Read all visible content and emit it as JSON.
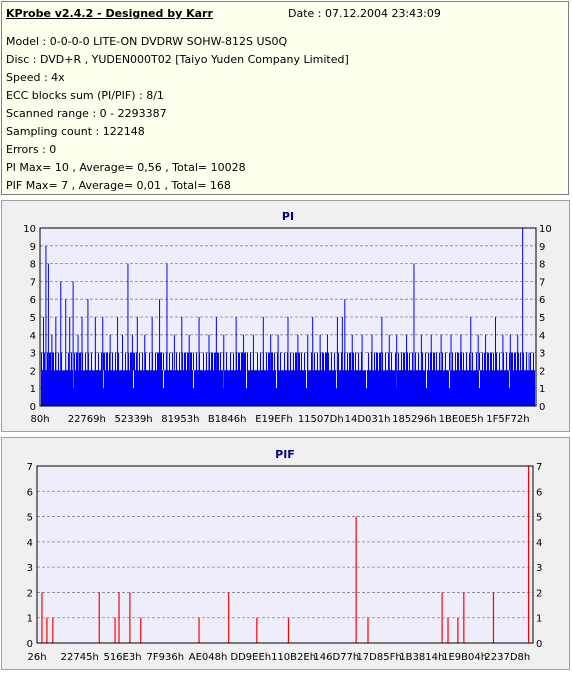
{
  "header": {
    "title": "KProbe v2.4.2 - Designed by Karr",
    "date": "Date : 07.12.2004 23:43:09",
    "lines": [
      "Model : 0-0-0-0 LITE-ON DVDRW SOHW-812S  US0Q",
      "Disc : DVD+R , YUDEN000T02 [Taiyo Yuden Company Limited]",
      "Speed : 4x",
      "ECC blocks sum (PI/PIF) : 8/1",
      "Scanned range : 0 - 2293387",
      "Sampling count : 122148",
      "Errors : 0",
      "PI Max= 10 , Average= 0,56 , Total= 10028",
      "PIF Max= 7 , Average= 0,01 , Total= 168"
    ]
  },
  "colors": {
    "pi": "#0000ff",
    "pif": "#ff0000",
    "plot_bg": "#eeeefa",
    "grid": "#8080a0",
    "panel_bg": "#f0f0f0",
    "title": "#000080"
  },
  "chart_data": [
    {
      "type": "bar",
      "title": "PI",
      "ylim": [
        0,
        10
      ],
      "yticks": [
        0,
        1,
        2,
        3,
        4,
        5,
        6,
        7,
        8,
        9,
        10
      ],
      "xticks": [
        "80h",
        "22769h",
        "52339h",
        "81953h",
        "B1846h",
        "E19EFh",
        "11507Dh",
        "14D031h",
        "185296h",
        "1BE0E5h",
        "1F5F72h"
      ],
      "grid": true,
      "base_level": 2,
      "frequent_level": 3,
      "spikes": [
        [
          0.005,
          5
        ],
        [
          0.01,
          9
        ],
        [
          0.015,
          8
        ],
        [
          0.022,
          4
        ],
        [
          0.03,
          5
        ],
        [
          0.04,
          7
        ],
        [
          0.05,
          6
        ],
        [
          0.058,
          5
        ],
        [
          0.065,
          7
        ],
        [
          0.075,
          4
        ],
        [
          0.083,
          5
        ],
        [
          0.095,
          6
        ],
        [
          0.11,
          5
        ],
        [
          0.125,
          5
        ],
        [
          0.14,
          4
        ],
        [
          0.155,
          5
        ],
        [
          0.165,
          4
        ],
        [
          0.176,
          8
        ],
        [
          0.185,
          4
        ],
        [
          0.195,
          5
        ],
        [
          0.21,
          4
        ],
        [
          0.225,
          5
        ],
        [
          0.24,
          6
        ],
        [
          0.255,
          8
        ],
        [
          0.27,
          4
        ],
        [
          0.285,
          5
        ],
        [
          0.3,
          4
        ],
        [
          0.32,
          5
        ],
        [
          0.34,
          4
        ],
        [
          0.355,
          5
        ],
        [
          0.37,
          4
        ],
        [
          0.395,
          5
        ],
        [
          0.41,
          4
        ],
        [
          0.43,
          4
        ],
        [
          0.45,
          5
        ],
        [
          0.465,
          4
        ],
        [
          0.48,
          4
        ],
        [
          0.5,
          5
        ],
        [
          0.52,
          4
        ],
        [
          0.54,
          4
        ],
        [
          0.55,
          5
        ],
        [
          0.565,
          4
        ],
        [
          0.58,
          4
        ],
        [
          0.6,
          5
        ],
        [
          0.61,
          5
        ],
        [
          0.615,
          6
        ],
        [
          0.63,
          4
        ],
        [
          0.65,
          4
        ],
        [
          0.67,
          4
        ],
        [
          0.69,
          5
        ],
        [
          0.705,
          4
        ],
        [
          0.72,
          4
        ],
        [
          0.74,
          4
        ],
        [
          0.755,
          8
        ],
        [
          0.77,
          4
        ],
        [
          0.79,
          4
        ],
        [
          0.81,
          4
        ],
        [
          0.83,
          4
        ],
        [
          0.85,
          4
        ],
        [
          0.87,
          5
        ],
        [
          0.885,
          4
        ],
        [
          0.9,
          4
        ],
        [
          0.92,
          5
        ],
        [
          0.935,
          4
        ],
        [
          0.95,
          4
        ],
        [
          0.965,
          4
        ],
        [
          0.975,
          10
        ],
        [
          0.988,
          3
        ]
      ]
    },
    {
      "type": "bar",
      "title": "PIF",
      "ylim": [
        0,
        7
      ],
      "yticks": [
        0,
        1,
        2,
        3,
        4,
        5,
        6,
        7
      ],
      "xticks": [
        "26h",
        "22745h",
        "516E3h",
        "7F936h",
        "AE048h",
        "DD9EEh",
        "110B2Eh",
        "146D77h",
        "17D85Fh",
        "1B3814h",
        "1E9B04h",
        "2237D8h"
      ],
      "grid": true,
      "bars": [
        [
          0.008,
          2
        ],
        [
          0.018,
          1
        ],
        [
          0.03,
          1
        ],
        [
          0.124,
          2
        ],
        [
          0.156,
          1
        ],
        [
          0.164,
          2
        ],
        [
          0.186,
          2
        ],
        [
          0.208,
          1
        ],
        [
          0.326,
          1
        ],
        [
          0.386,
          2
        ],
        [
          0.443,
          1
        ],
        [
          0.507,
          1
        ],
        [
          0.644,
          5
        ],
        [
          0.668,
          1
        ],
        [
          0.818,
          2
        ],
        [
          0.83,
          1
        ],
        [
          0.85,
          1
        ],
        [
          0.862,
          2
        ],
        [
          0.922,
          2
        ],
        [
          0.993,
          7
        ]
      ]
    }
  ]
}
